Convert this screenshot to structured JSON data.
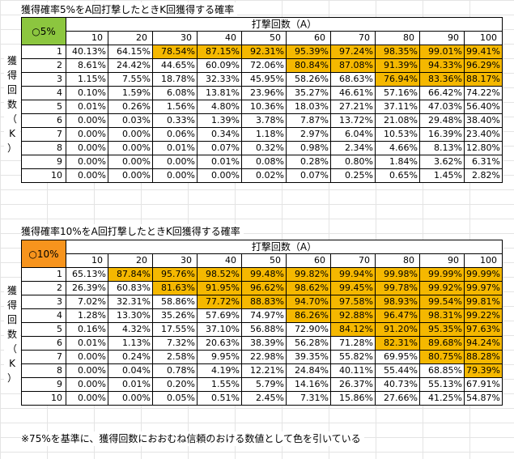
{
  "sheet": {
    "note": "※75%を基準に、獲得回数におおむね信頼のおける数値として色を引いている",
    "tables": [
      {
        "title": "獲得確率5%をA回打撃したときK回獲得する確率",
        "corner_label": "○5%",
        "corner_color": "#8cc63f",
        "col_header": "打撃回数（A）",
        "row_header_chars": [
          "獲",
          "得",
          "回",
          "数",
          "（",
          "K",
          "）"
        ],
        "columns": [
          "10",
          "20",
          "30",
          "40",
          "50",
          "60",
          "70",
          "80",
          "90",
          "100"
        ],
        "rows": [
          {
            "k": "1",
            "values": [
              "40.13%",
              "64.15%",
              "78.54%",
              "87.15%",
              "92.31%",
              "95.39%",
              "97.24%",
              "98.35%",
              "99.01%",
              "99.41%"
            ],
            "highlight_from": 2
          },
          {
            "k": "2",
            "values": [
              "8.61%",
              "24.42%",
              "44.65%",
              "60.09%",
              "72.06%",
              "80.84%",
              "87.08%",
              "91.39%",
              "94.33%",
              "96.29%"
            ],
            "highlight_from": 5
          },
          {
            "k": "3",
            "values": [
              "1.15%",
              "7.55%",
              "18.78%",
              "32.33%",
              "45.95%",
              "58.26%",
              "68.63%",
              "76.94%",
              "83.36%",
              "88.17%"
            ],
            "highlight_from": 7
          },
          {
            "k": "4",
            "values": [
              "0.10%",
              "1.59%",
              "6.08%",
              "13.81%",
              "23.96%",
              "35.27%",
              "46.61%",
              "57.16%",
              "66.42%",
              "74.22%"
            ],
            "highlight_from": 10
          },
          {
            "k": "5",
            "values": [
              "0.01%",
              "0.26%",
              "1.56%",
              "4.80%",
              "10.36%",
              "18.03%",
              "27.21%",
              "37.11%",
              "47.03%",
              "56.40%"
            ],
            "highlight_from": 10
          },
          {
            "k": "6",
            "values": [
              "0.00%",
              "0.03%",
              "0.33%",
              "1.39%",
              "3.78%",
              "7.87%",
              "13.72%",
              "21.08%",
              "29.48%",
              "38.40%"
            ],
            "highlight_from": 10
          },
          {
            "k": "7",
            "values": [
              "0.00%",
              "0.00%",
              "0.06%",
              "0.34%",
              "1.18%",
              "2.97%",
              "6.04%",
              "10.53%",
              "16.39%",
              "23.40%"
            ],
            "highlight_from": 10
          },
          {
            "k": "8",
            "values": [
              "0.00%",
              "0.00%",
              "0.01%",
              "0.07%",
              "0.32%",
              "0.98%",
              "2.34%",
              "4.66%",
              "8.13%",
              "12.80%"
            ],
            "highlight_from": 10
          },
          {
            "k": "9",
            "values": [
              "0.00%",
              "0.00%",
              "0.00%",
              "0.01%",
              "0.08%",
              "0.28%",
              "0.80%",
              "1.84%",
              "3.62%",
              "6.31%"
            ],
            "highlight_from": 10
          },
          {
            "k": "10",
            "values": [
              "0.00%",
              "0.00%",
              "0.00%",
              "0.00%",
              "0.02%",
              "0.07%",
              "0.25%",
              "0.65%",
              "1.45%",
              "2.82%"
            ],
            "highlight_from": 10
          }
        ]
      },
      {
        "title": "獲得確率10%をA回打撃したときK回獲得する確率",
        "corner_label": "○10%",
        "corner_color": "#f7941d",
        "col_header": "打撃回数（A）",
        "row_header_chars": [
          "獲",
          "得",
          "回",
          "数",
          "（",
          "K",
          "）"
        ],
        "columns": [
          "10",
          "20",
          "30",
          "40",
          "50",
          "60",
          "70",
          "80",
          "90",
          "100"
        ],
        "rows": [
          {
            "k": "1",
            "values": [
              "65.13%",
              "87.84%",
              "95.76%",
              "98.52%",
              "99.48%",
              "99.82%",
              "99.94%",
              "99.98%",
              "99.99%",
              "99.99%"
            ],
            "highlight_from": 1
          },
          {
            "k": "2",
            "values": [
              "26.39%",
              "60.83%",
              "81.63%",
              "91.95%",
              "96.62%",
              "98.62%",
              "99.45%",
              "99.78%",
              "99.92%",
              "99.97%"
            ],
            "highlight_from": 2
          },
          {
            "k": "3",
            "values": [
              "7.02%",
              "32.31%",
              "58.86%",
              "77.72%",
              "88.83%",
              "94.70%",
              "97.58%",
              "98.93%",
              "99.54%",
              "99.81%"
            ],
            "highlight_from": 3
          },
          {
            "k": "4",
            "values": [
              "1.28%",
              "13.30%",
              "35.26%",
              "57.69%",
              "74.97%",
              "86.26%",
              "92.88%",
              "96.47%",
              "98.31%",
              "99.22%"
            ],
            "highlight_from": 5
          },
          {
            "k": "5",
            "values": [
              "0.16%",
              "4.32%",
              "17.55%",
              "37.10%",
              "56.88%",
              "72.90%",
              "84.12%",
              "91.20%",
              "95.35%",
              "97.63%"
            ],
            "highlight_from": 6
          },
          {
            "k": "6",
            "values": [
              "0.01%",
              "1.13%",
              "7.32%",
              "20.63%",
              "38.39%",
              "56.28%",
              "71.28%",
              "82.31%",
              "89.68%",
              "94.24%"
            ],
            "highlight_from": 7
          },
          {
            "k": "7",
            "values": [
              "0.00%",
              "0.24%",
              "2.58%",
              "9.95%",
              "22.98%",
              "39.35%",
              "55.82%",
              "69.95%",
              "80.75%",
              "88.28%"
            ],
            "highlight_from": 8
          },
          {
            "k": "8",
            "values": [
              "0.00%",
              "0.04%",
              "0.78%",
              "4.19%",
              "12.21%",
              "24.84%",
              "40.11%",
              "55.44%",
              "68.85%",
              "79.39%"
            ],
            "highlight_from": 9
          },
          {
            "k": "9",
            "values": [
              "0.00%",
              "0.01%",
              "0.20%",
              "1.55%",
              "5.79%",
              "14.16%",
              "26.37%",
              "40.73%",
              "55.13%",
              "67.91%"
            ],
            "highlight_from": 10
          },
          {
            "k": "10",
            "values": [
              "0.00%",
              "0.00%",
              "0.05%",
              "0.51%",
              "2.45%",
              "7.31%",
              "15.86%",
              "27.66%",
              "41.25%",
              "54.87%"
            ],
            "highlight_from": 10
          }
        ]
      }
    ]
  }
}
